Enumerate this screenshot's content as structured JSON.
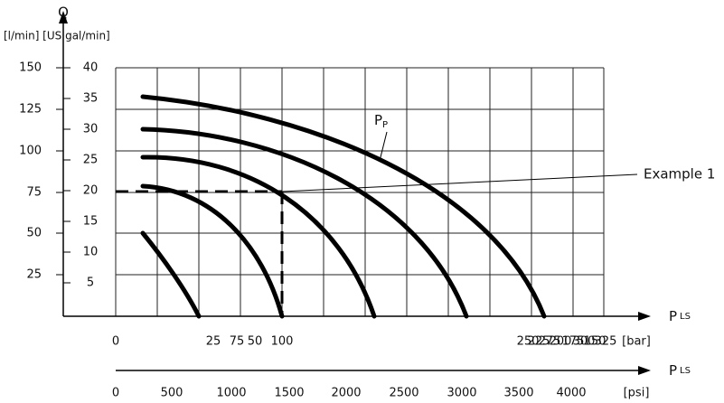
{
  "axis_q": {
    "label": "Q",
    "units": "[l/min] [US gal/min]",
    "lmin_ticks": [
      "150",
      "125",
      "100",
      "75",
      "50",
      "25"
    ],
    "gal_ticks": [
      "40",
      "35",
      "30",
      "25",
      "20",
      "15",
      "10",
      "5"
    ]
  },
  "axis_bar": {
    "label": "P",
    "subscript": "LS",
    "ticks": [
      "0",
      "25",
      "75",
      "50",
      "100",
      "250",
      "225",
      "275",
      "200",
      "175",
      "300",
      "150",
      "325",
      "[bar]"
    ]
  },
  "axis_psi": {
    "label": "P",
    "subscript": "LS",
    "ticks": [
      "0",
      "500",
      "1000",
      "1500",
      "2000",
      "2500",
      "3000",
      "3500",
      "4000",
      "[psi]"
    ]
  },
  "annotations": {
    "pp": "P",
    "pp_sub": "P",
    "example": "Example 1"
  }
}
